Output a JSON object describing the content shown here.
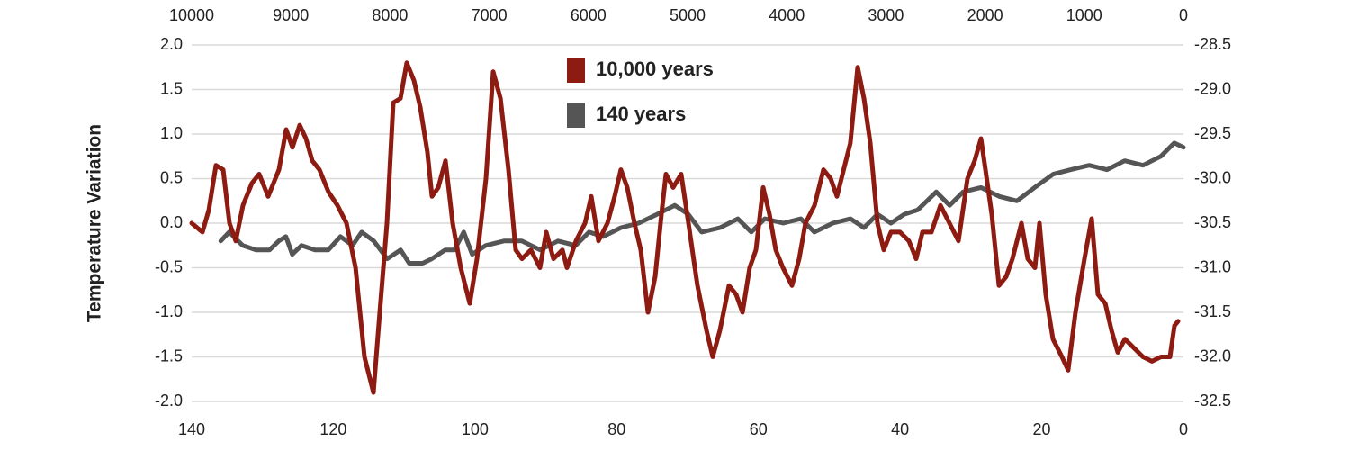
{
  "chart_data": {
    "type": "line",
    "y_label": "Temperature Variation",
    "xlim": [
      140,
      0
    ],
    "xticks": [
      140,
      120,
      100,
      80,
      60,
      40,
      20,
      0
    ],
    "x2lim": [
      10000,
      0
    ],
    "x2ticks": [
      10000,
      9000,
      8000,
      7000,
      6000,
      5000,
      4000,
      3000,
      2000,
      1000,
      0
    ],
    "ylim": [
      -2,
      2
    ],
    "yticks": [
      {
        "value": -2,
        "label": "-2.0"
      },
      -1.5,
      {
        "value": -1,
        "label": "-1.0"
      },
      -0.5,
      {
        "value": 0,
        "label": "0.0"
      },
      0.5,
      {
        "value": 1,
        "label": "1.0"
      },
      1.5,
      {
        "value": 2,
        "label": "2.0"
      }
    ],
    "y2lim": [
      -32.5,
      -28.5
    ],
    "y2ticks": [
      -32.5,
      {
        "value": -32,
        "label": "-32.0"
      },
      -31.5,
      {
        "value": -31,
        "label": "-31.0"
      },
      -30.5,
      {
        "value": -30,
        "label": "-30.0"
      },
      -29.5,
      {
        "value": -29,
        "label": "-29.0"
      },
      -28.5
    ],
    "grid": true,
    "series": [
      {
        "name": "10,000 years",
        "color": "#8e1b12",
        "axis": "y2",
        "xaxis": "x2",
        "x": [
          10000,
          9891,
          9827,
          9755,
          9682,
          9619,
          9555,
          9483,
          9392,
          9319,
          9229,
          9120,
          9047,
          8984,
          8911,
          8848,
          8784,
          8711,
          8621,
          8530,
          8439,
          8348,
          8258,
          8167,
          8103,
          8031,
          7967,
          7895,
          7831,
          7759,
          7695,
          7623,
          7577,
          7514,
          7441,
          7368,
          7287,
          7196,
          7123,
          7033,
          6960,
          6887,
          6806,
          6733,
          6670,
          6579,
          6488,
          6425,
          6352,
          6261,
          6216,
          6125,
          6034,
          5971,
          5898,
          5808,
          5735,
          5672,
          5608,
          5535,
          5472,
          5399,
          5327,
          5263,
          5218,
          5145,
          5064,
          4991,
          4900,
          4809,
          4746,
          4673,
          4583,
          4510,
          4446,
          4374,
          4310,
          4238,
          4174,
          4111,
          4038,
          3947,
          3875,
          3811,
          3720,
          3630,
          3557,
          3494,
          3358,
          3285,
          3221,
          3158,
          3085,
          3022,
          2949,
          2858,
          2768,
          2695,
          2632,
          2541,
          2450,
          2359,
          2269,
          2178,
          2105,
          2042,
          1996,
          1933,
          1860,
          1788,
          1724,
          1633,
          1570,
          1497,
          1452,
          1388,
          1316,
          1225,
          1162,
          1089,
          998,
          926,
          862,
          789,
          726,
          662,
          590,
          499,
          408,
          318,
          227,
          136,
          91,
          54
        ],
        "values": [
          -30.5,
          -30.6,
          -30.35,
          -29.85,
          -29.9,
          -30.5,
          -30.7,
          -30.3,
          -30.05,
          -29.95,
          -30.2,
          -29.9,
          -29.45,
          -29.65,
          -29.4,
          -29.55,
          -29.8,
          -29.9,
          -30.15,
          -30.3,
          -30.5,
          -31,
          -32,
          -32.4,
          -31.5,
          -30.5,
          -29.15,
          -29.1,
          -28.7,
          -28.9,
          -29.2,
          -29.7,
          -30.2,
          -30.1,
          -29.8,
          -30.5,
          -31,
          -31.4,
          -30.9,
          -30,
          -28.8,
          -29.1,
          -29.9,
          -30.8,
          -30.9,
          -30.8,
          -31,
          -30.6,
          -30.9,
          -30.8,
          -31,
          -30.7,
          -30.5,
          -30.2,
          -30.7,
          -30.5,
          -30.2,
          -29.9,
          -30.1,
          -30.5,
          -30.8,
          -31.5,
          -31.1,
          -30.4,
          -29.95,
          -30.1,
          -29.95,
          -30.5,
          -31.2,
          -31.7,
          -32,
          -31.7,
          -31.2,
          -31.3,
          -31.5,
          -31,
          -30.8,
          -30.1,
          -30.4,
          -30.8,
          -31,
          -31.2,
          -30.9,
          -30.5,
          -30.3,
          -29.9,
          -30,
          -30.2,
          -29.6,
          -28.75,
          -29.1,
          -29.6,
          -30.5,
          -30.8,
          -30.6,
          -30.6,
          -30.7,
          -30.9,
          -30.6,
          -30.6,
          -30.3,
          -30.5,
          -30.7,
          -30,
          -29.8,
          -29.55,
          -29.9,
          -30.4,
          -31.2,
          -31.1,
          -30.9,
          -30.5,
          -30.9,
          -31,
          -30.5,
          -31.3,
          -31.8,
          -32,
          -32.15,
          -31.5,
          -30.9,
          -30.45,
          -31.3,
          -31.4,
          -31.7,
          -31.95,
          -31.8,
          -31.9,
          -32,
          -32.05,
          -32,
          -32,
          -31.65,
          -31.6
        ]
      },
      {
        "name": "140 years",
        "color": "#555555",
        "x": [
          135.9,
          134.7,
          132.8,
          130.9,
          129,
          127.7,
          126.7,
          125.8,
          124.5,
          122.6,
          120.7,
          119,
          117.3,
          116,
          114.3,
          112.4,
          110.5,
          109.3,
          107.4,
          106.1,
          104.2,
          102.9,
          101.6,
          100.4,
          98.5,
          95.9,
          93.4,
          90.8,
          88.3,
          85.8,
          83.9,
          81.9,
          79.4,
          76.9,
          74.3,
          71.8,
          69.9,
          68,
          65.4,
          62.9,
          61,
          59.1,
          56.5,
          54,
          52.1,
          49.5,
          47,
          45.1,
          43.2,
          41.3,
          39.4,
          37.5,
          34.9,
          33,
          31.1,
          28.6,
          26,
          23.5,
          21,
          18.4,
          15.9,
          13.3,
          10.8,
          8.3,
          5.7,
          3.2,
          1.3,
          0
        ],
        "values": [
          -0.2,
          -0.1,
          -0.25,
          -0.3,
          -0.3,
          -0.2,
          -0.15,
          -0.35,
          -0.25,
          -0.3,
          -0.3,
          -0.15,
          -0.25,
          -0.1,
          -0.2,
          -0.4,
          -0.3,
          -0.45,
          -0.45,
          -0.4,
          -0.3,
          -0.3,
          -0.1,
          -0.35,
          -0.25,
          -0.2,
          -0.2,
          -0.3,
          -0.2,
          -0.25,
          -0.1,
          -0.15,
          -0.05,
          0,
          0.1,
          0.2,
          0.1,
          -0.1,
          -0.05,
          0.05,
          -0.1,
          0.05,
          0,
          0.05,
          -0.1,
          0,
          0.05,
          -0.05,
          0.1,
          0,
          0.1,
          0.15,
          0.35,
          0.2,
          0.35,
          0.4,
          0.3,
          0.25,
          0.4,
          0.55,
          0.6,
          0.65,
          0.6,
          0.7,
          0.65,
          0.75,
          0.9,
          0.85
        ]
      }
    ]
  }
}
